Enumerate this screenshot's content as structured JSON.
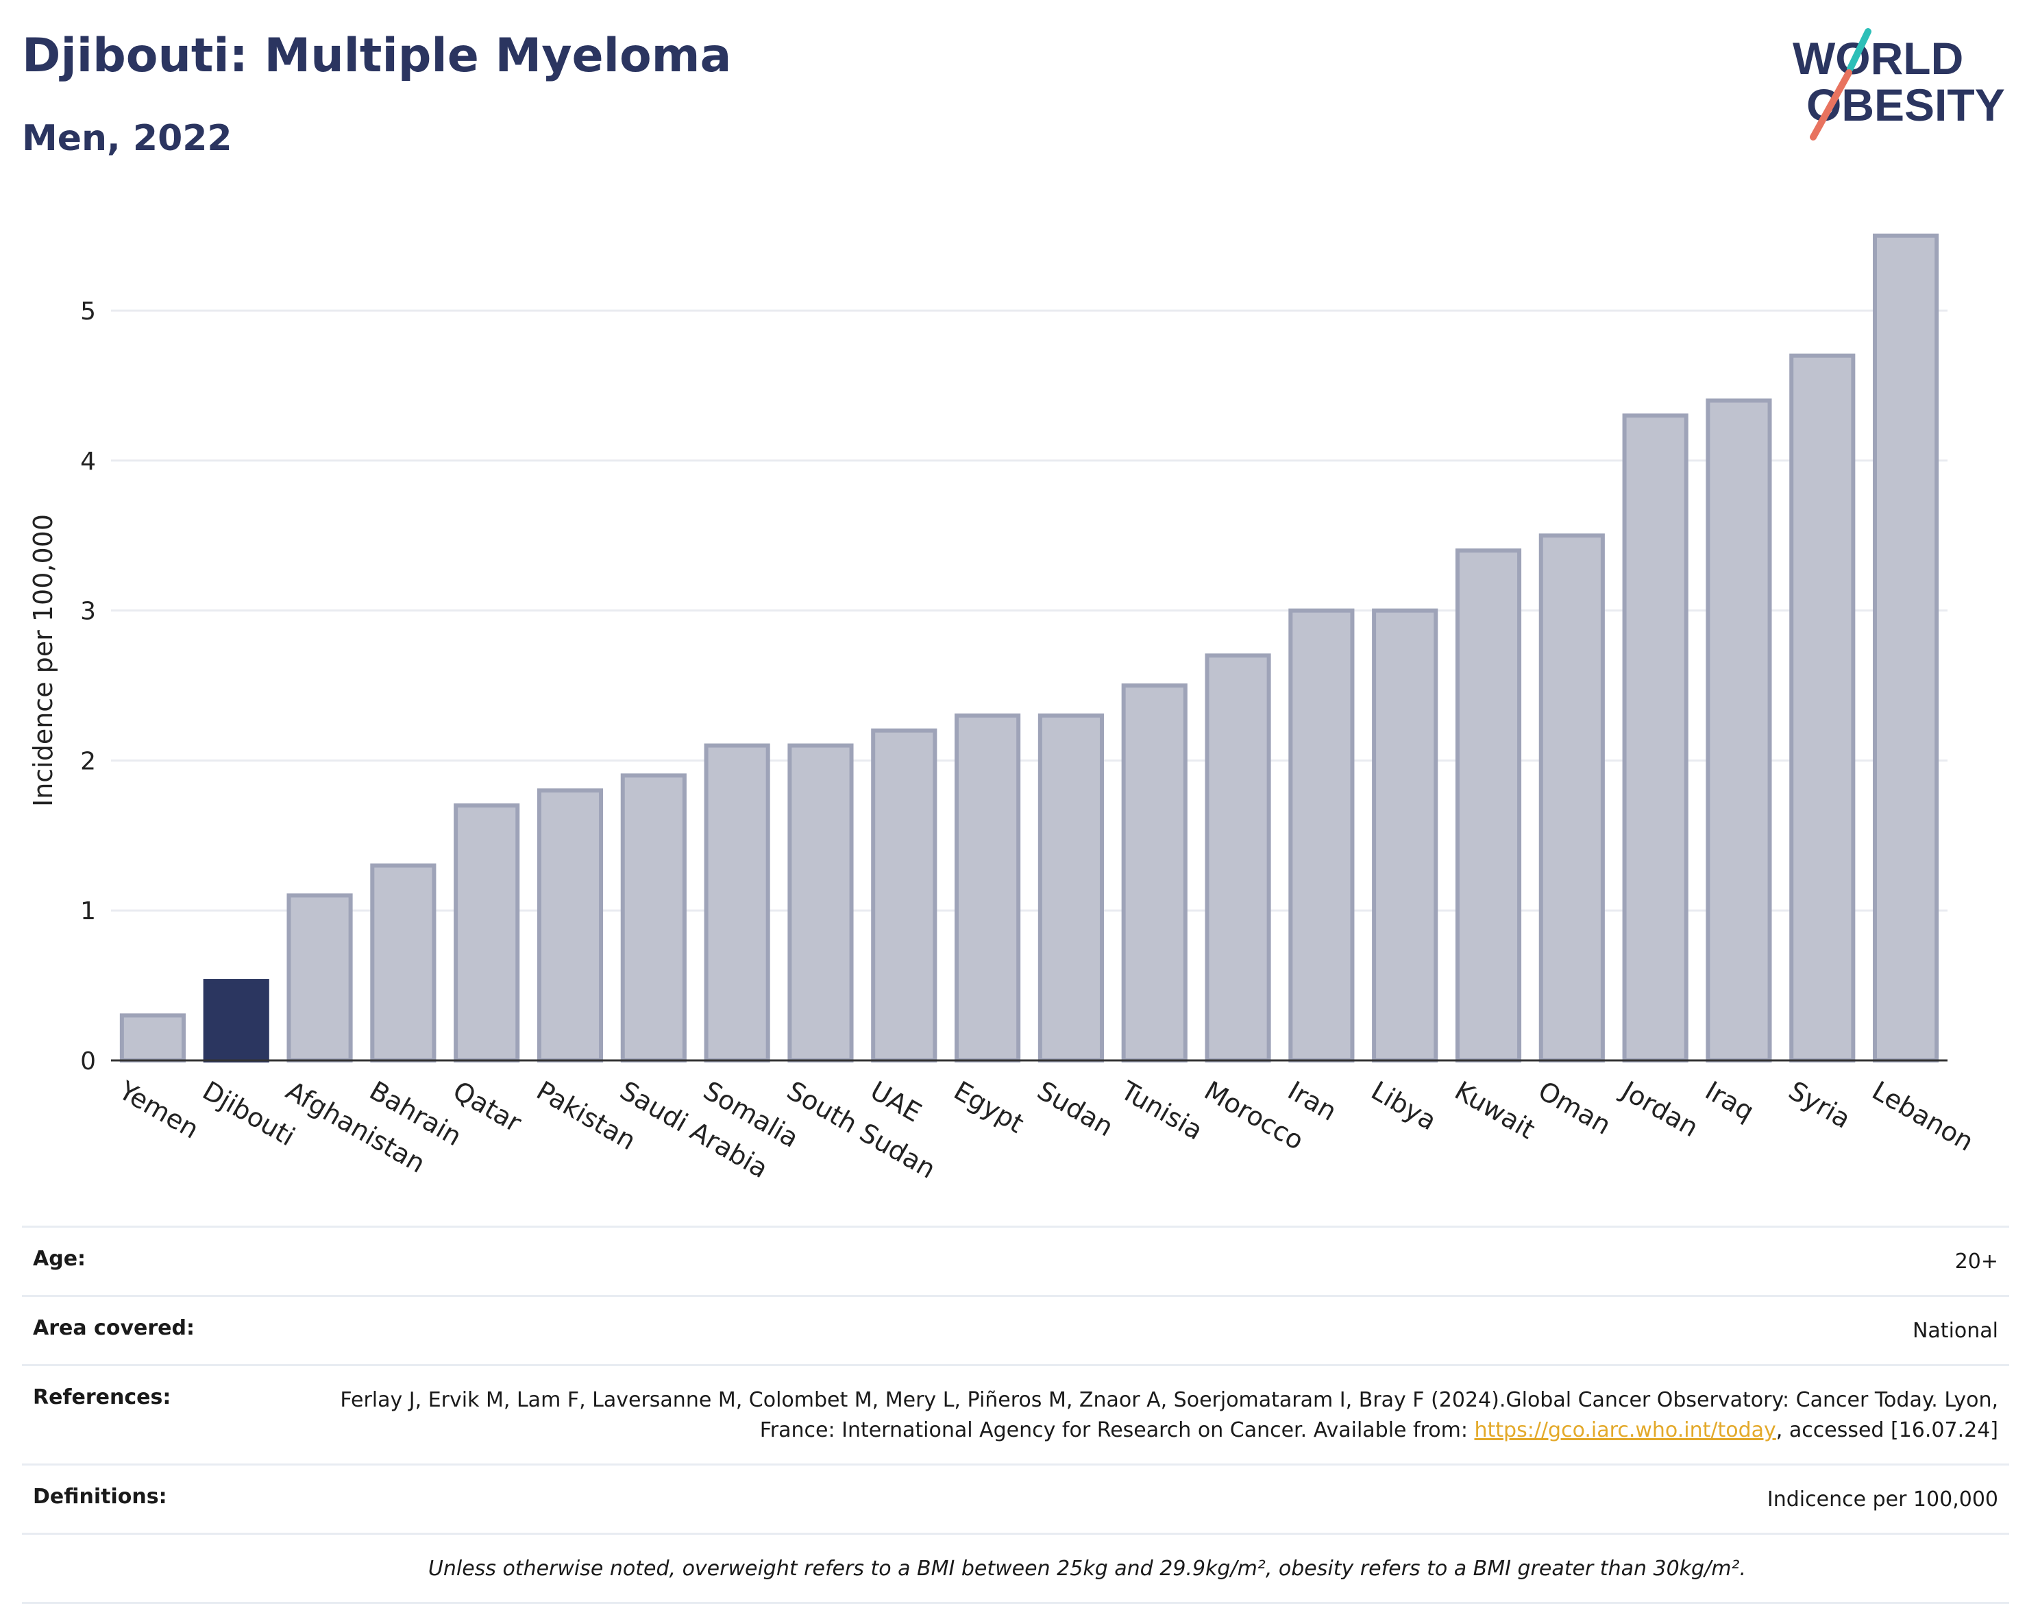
{
  "header": {
    "title": "Djibouti: Multiple Myeloma",
    "subtitle": "Men, 2022",
    "logo_line1": "WORLD",
    "logo_line2": "OBESITY"
  },
  "chart_data": {
    "type": "bar",
    "categories": [
      "Yemen",
      "Djibouti",
      "Afghanistan",
      "Bahrain",
      "Qatar",
      "Pakistan",
      "Saudi Arabia",
      "Somalia",
      "South Sudan",
      "UAE",
      "Egypt",
      "Sudan",
      "Tunisia",
      "Morocco",
      "Iran",
      "Libya",
      "Kuwait",
      "Oman",
      "Jordan",
      "Iraq",
      "Syria",
      "Lebanon"
    ],
    "values": [
      0.3,
      0.53,
      1.1,
      1.3,
      1.7,
      1.8,
      1.9,
      2.1,
      2.1,
      2.2,
      2.3,
      2.3,
      2.5,
      2.7,
      3.0,
      3.0,
      3.4,
      3.5,
      4.3,
      4.4,
      4.7,
      5.5
    ],
    "highlight": "Djibouti",
    "ylabel": "Incidence per 100,000",
    "xlabel": "",
    "ylim": [
      0,
      5.7
    ],
    "yticks": [
      0,
      1,
      2,
      3,
      4,
      5
    ],
    "grid": true,
    "colors": {
      "bar": "#bfc2cf",
      "bar_stroke": "#9ea3b8",
      "highlight": "#2b3660"
    }
  },
  "info": {
    "age_label": "Age:",
    "age_value": "20+",
    "area_label": "Area covered:",
    "area_value": "National",
    "references_label": "References:",
    "references_text1": "Ferlay J, Ervik M, Lam F, Laversanne M, Colombet M, Mery L, Piñeros M, Znaor A, Soerjomataram I, Bray F (2024).Global Cancer Observatory: Cancer Today. Lyon, France: International Agency for Research on Cancer. Available from: ",
    "references_link": "https://gco.iarc.who.int/today",
    "references_text2": ", accessed [16.07.24]",
    "definitions_label": "Definitions:",
    "definitions_value": "Indicence per 100,000",
    "note": "Unless otherwise noted, overweight refers to a BMI between 25kg and 29.9kg/m², obesity refers to a BMI greater than 30kg/m²."
  }
}
